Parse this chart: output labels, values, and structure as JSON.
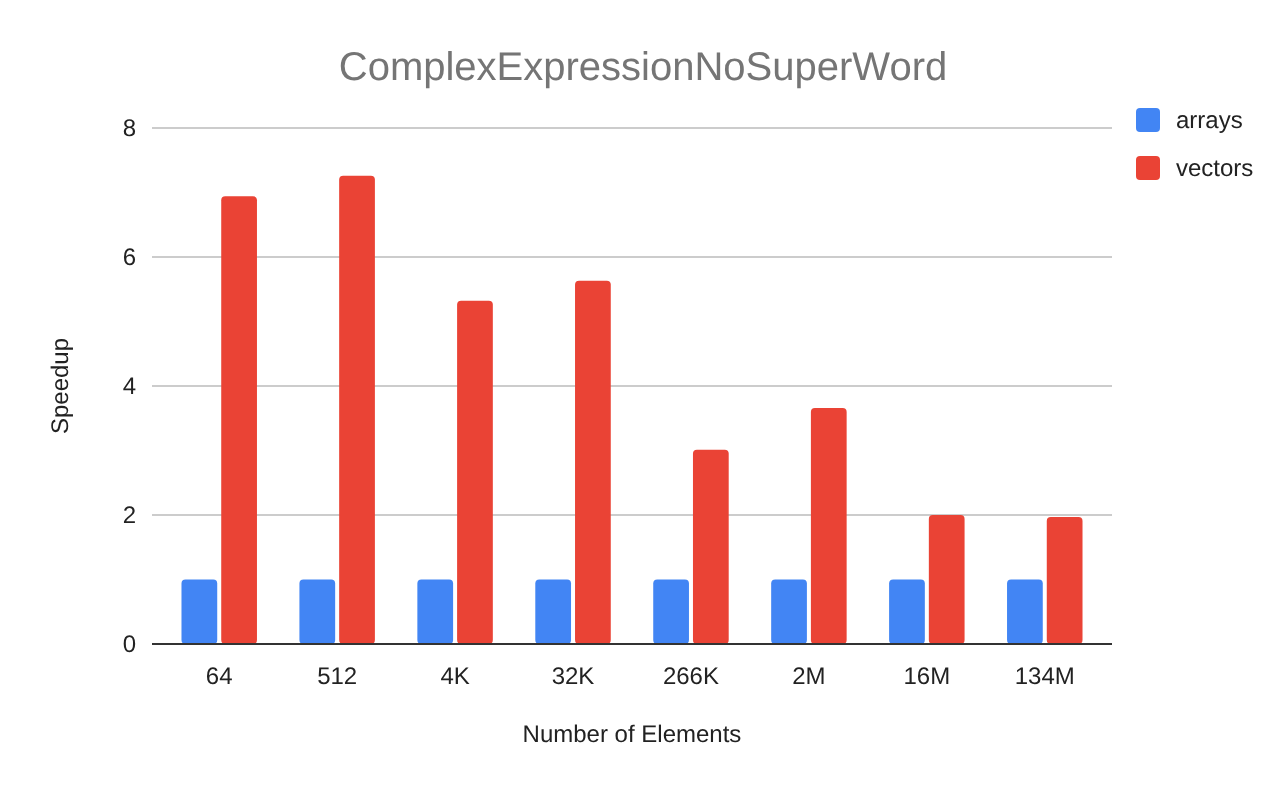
{
  "chart_data": {
    "type": "bar",
    "title": "ComplexExpressionNoSuperWord",
    "xlabel": "Number of Elements",
    "ylabel": "Speedup",
    "categories": [
      "64",
      "512",
      "4K",
      "32K",
      "266K",
      "2M",
      "16M",
      "134M"
    ],
    "series": [
      {
        "name": "arrays",
        "color": "#4285f4",
        "values": [
          1,
          1,
          1,
          1,
          1,
          1,
          1,
          1
        ]
      },
      {
        "name": "vectors",
        "color": "#ea4335",
        "values": [
          6.94,
          7.26,
          5.32,
          5.63,
          3.01,
          3.66,
          2.0,
          1.97
        ]
      }
    ],
    "ylim": [
      0,
      8
    ],
    "yticks": [
      0,
      2,
      4,
      6,
      8
    ],
    "grid": "y",
    "legend": "top right"
  }
}
